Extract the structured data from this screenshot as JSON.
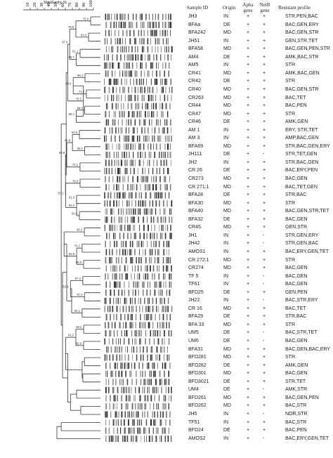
{
  "scale": {
    "title": "Similarity %",
    "ticks": [
      "10",
      "20",
      "30",
      "40",
      "50",
      "60",
      "70",
      "80",
      "90",
      "100"
    ]
  },
  "headers": {
    "sample_id": "Sample ID",
    "origin": "Origin",
    "apha": "Apha gene",
    "netb": "NetB gene",
    "resistant": "Resistant profile"
  },
  "node_labels": [
    "75.0",
    "93.3",
    "81.1",
    "75.6",
    "85.7",
    "86.1",
    "71.2",
    "88.0",
    "89.9",
    "66.2",
    "87.6",
    "75.5",
    "63.5",
    "80.0",
    "70.1",
    "80.9",
    "76.0",
    "81.0",
    "60.4",
    "62.0",
    "87.1",
    "83.9",
    "60.2",
    "76.1",
    "86.0",
    "84.9",
    "87.2",
    "67.3",
    "83.9",
    "54.1",
    "58.2",
    "69.0",
    "61.2"
  ],
  "rows": [
    {
      "id": "JH3",
      "origin": "IN",
      "apha": "+",
      "netb": "+",
      "profile": "STR,PEN,BAC"
    },
    {
      "id": "BFAa",
      "origin": "DE",
      "apha": "+",
      "netb": "+",
      "profile": "BAC,GEN,ERY"
    },
    {
      "id": "BFA242",
      "origin": "MD",
      "apha": "+",
      "netb": "+",
      "profile": "BAC,GEN,STR"
    },
    {
      "id": "JH51",
      "origin": "IN",
      "apha": "+",
      "netb": "+",
      "profile": "GEN,STR,TET"
    },
    {
      "id": "BFA58",
      "origin": "MD",
      "apha": "+",
      "netb": "+",
      "profile": "BAC,GEN,PEN,STR"
    },
    {
      "id": "AM4",
      "origin": "DE",
      "apha": "+",
      "netb": "+",
      "profile": "AMK,BAC,STR"
    },
    {
      "id": "AM5",
      "origin": "IN",
      "apha": "+",
      "netb": "+",
      "profile": "STR"
    },
    {
      "id": "CR41",
      "origin": "MD",
      "apha": "+",
      "netb": "+",
      "profile": "AMK,BAC,GEN"
    },
    {
      "id": "CR42",
      "origin": "DE",
      "apha": "+",
      "netb": "+",
      "profile": "STR"
    },
    {
      "id": "CR40",
      "origin": "MD",
      "apha": "+",
      "netb": "+",
      "profile": "BAC,GEN,STR"
    },
    {
      "id": "CR263",
      "origin": "MD",
      "apha": "+",
      "netb": "+",
      "profile": "BAC,TET"
    },
    {
      "id": "CR44",
      "origin": "MD",
      "apha": "+",
      "netb": "+",
      "profile": "BAC,PEN"
    },
    {
      "id": "CR47",
      "origin": "MD",
      "apha": "+",
      "netb": "+",
      "profile": "STR"
    },
    {
      "id": "CR46",
      "origin": "DE",
      "apha": "+",
      "netb": "+",
      "profile": "AMK,GEN"
    },
    {
      "id": "AM 1",
      "origin": "IN",
      "apha": "+",
      "netb": "+",
      "profile": "ERY, STR,TET"
    },
    {
      "id": "AM 3",
      "origin": "IN",
      "apha": "+",
      "netb": "+",
      "profile": "AMP,BAC,GEN"
    },
    {
      "id": "BFA69",
      "origin": "MD",
      "apha": "+",
      "netb": "+",
      "profile": "STR,BAC,GEN,ERY"
    },
    {
      "id": "JH111",
      "origin": "DE",
      "apha": "+",
      "netb": "-",
      "profile": "STR,TET,GEN"
    },
    {
      "id": "JH2",
      "origin": "IN",
      "apha": "+",
      "netb": "+",
      "profile": "STR,BAC,GEN"
    },
    {
      "id": "CR 26",
      "origin": "DE",
      "apha": "+",
      "netb": "+",
      "profile": "BAC,ERY,PEN"
    },
    {
      "id": "CR273",
      "origin": "MD",
      "apha": "+",
      "netb": "+",
      "profile": "BAC,GEN"
    },
    {
      "id": "CR 271:1",
      "origin": "MD",
      "apha": "+",
      "netb": "+",
      "profile": "BAC,TET,GEN"
    },
    {
      "id": "BFA28",
      "origin": "DE",
      "apha": "+",
      "netb": "+",
      "profile": "STR,BAC"
    },
    {
      "id": "BFA30",
      "origin": "MD",
      "apha": "+",
      "netb": "+",
      "profile": "STR"
    },
    {
      "id": "BFA40",
      "origin": "MD",
      "apha": "+",
      "netb": "+",
      "profile": "BAC,GEN,STR,TET"
    },
    {
      "id": "BFA32",
      "origin": "DE",
      "apha": "+",
      "netb": "+",
      "profile": "BAC,GEN"
    },
    {
      "id": "CR45",
      "origin": "MD",
      "apha": "+",
      "netb": "+",
      "profile": "GEN,STR"
    },
    {
      "id": "JH1",
      "origin": "IN",
      "apha": "+",
      "netb": "-",
      "profile": "STR,GEN,ERY"
    },
    {
      "id": "JH42",
      "origin": "IN",
      "apha": "+",
      "netb": "-",
      "profile": "STR,GEN,BAC"
    },
    {
      "id": "AMOS1",
      "origin": "IN",
      "apha": "+",
      "netb": "+",
      "profile": "BAC,ERY,GEN,TET"
    },
    {
      "id": "CR 272:1",
      "origin": "MD",
      "apha": "+",
      "netb": "+",
      "profile": "STR"
    },
    {
      "id": "CR274",
      "origin": "MD",
      "apha": "+",
      "netb": "+",
      "profile": "BAC,GEN"
    },
    {
      "id": "TF 5",
      "origin": "IN",
      "apha": "+",
      "netb": "-",
      "profile": "BAC,GEN"
    },
    {
      "id": "TF61",
      "origin": "IN",
      "apha": "+",
      "netb": "-",
      "profile": "BAC,GEN"
    },
    {
      "id": "BFD25",
      "origin": "DE",
      "apha": "+",
      "netb": "+",
      "profile": "GEN,PEN"
    },
    {
      "id": "JH22",
      "origin": "IN",
      "apha": "+",
      "netb": "-",
      "profile": "BAC,STR,ERY"
    },
    {
      "id": "CR 16",
      "origin": "MD",
      "apha": "+",
      "netb": "+",
      "profile": "BAC,TET"
    },
    {
      "id": "BFA29",
      "origin": "DE",
      "apha": "+",
      "netb": "+",
      "profile": "STR,BAC"
    },
    {
      "id": "BFA 33",
      "origin": "MD",
      "apha": "+",
      "netb": "+",
      "profile": "STR"
    },
    {
      "id": "UM5",
      "origin": "DE",
      "apha": "+",
      "netb": "-",
      "profile": "BAC,STR,TET"
    },
    {
      "id": "UM6",
      "origin": "DE",
      "apha": "+",
      "netb": "-",
      "profile": "BAC,GEN"
    },
    {
      "id": "BFA31",
      "origin": "MD",
      "apha": "+",
      "netb": "+",
      "profile": "BAC,GEN,BAC,ERY"
    },
    {
      "id": "BFD281",
      "origin": "MD",
      "apha": "+",
      "netb": "+",
      "profile": "STR"
    },
    {
      "id": "BFD282",
      "origin": "DE",
      "apha": "+",
      "netb": "+",
      "profile": "AMK,GEN"
    },
    {
      "id": "BFD301",
      "origin": "MD",
      "apha": "+",
      "netb": "+",
      "profile": "BAC,GEN"
    },
    {
      "id": "BFD3021",
      "origin": "DE",
      "apha": "+",
      "netb": "+",
      "profile": "STR,TET"
    },
    {
      "id": "UM4",
      "origin": "DE",
      "apha": "+",
      "netb": "-",
      "profile": "AMK,STR"
    },
    {
      "id": "BFD261",
      "origin": "MD",
      "apha": "+",
      "netb": "+",
      "profile": "BAC,GEN,PEN"
    },
    {
      "id": "BFD262",
      "origin": "MD",
      "apha": "+",
      "netb": "+",
      "profile": "BAC,STR"
    },
    {
      "id": "JH5",
      "origin": "IN",
      "apha": "+",
      "netb": "-",
      "profile": "NOR,STR"
    },
    {
      "id": "TF51",
      "origin": "IN",
      "apha": "+",
      "netb": "+",
      "profile": "BAC,STR"
    },
    {
      "id": "BFD24",
      "origin": "DE",
      "apha": "+",
      "netb": "+",
      "profile": "BAC,PEN"
    },
    {
      "id": "AMOS2",
      "origin": "IN",
      "apha": "+",
      "netb": "-",
      "profile": "BAC,ERY,GEN,TET"
    }
  ]
}
